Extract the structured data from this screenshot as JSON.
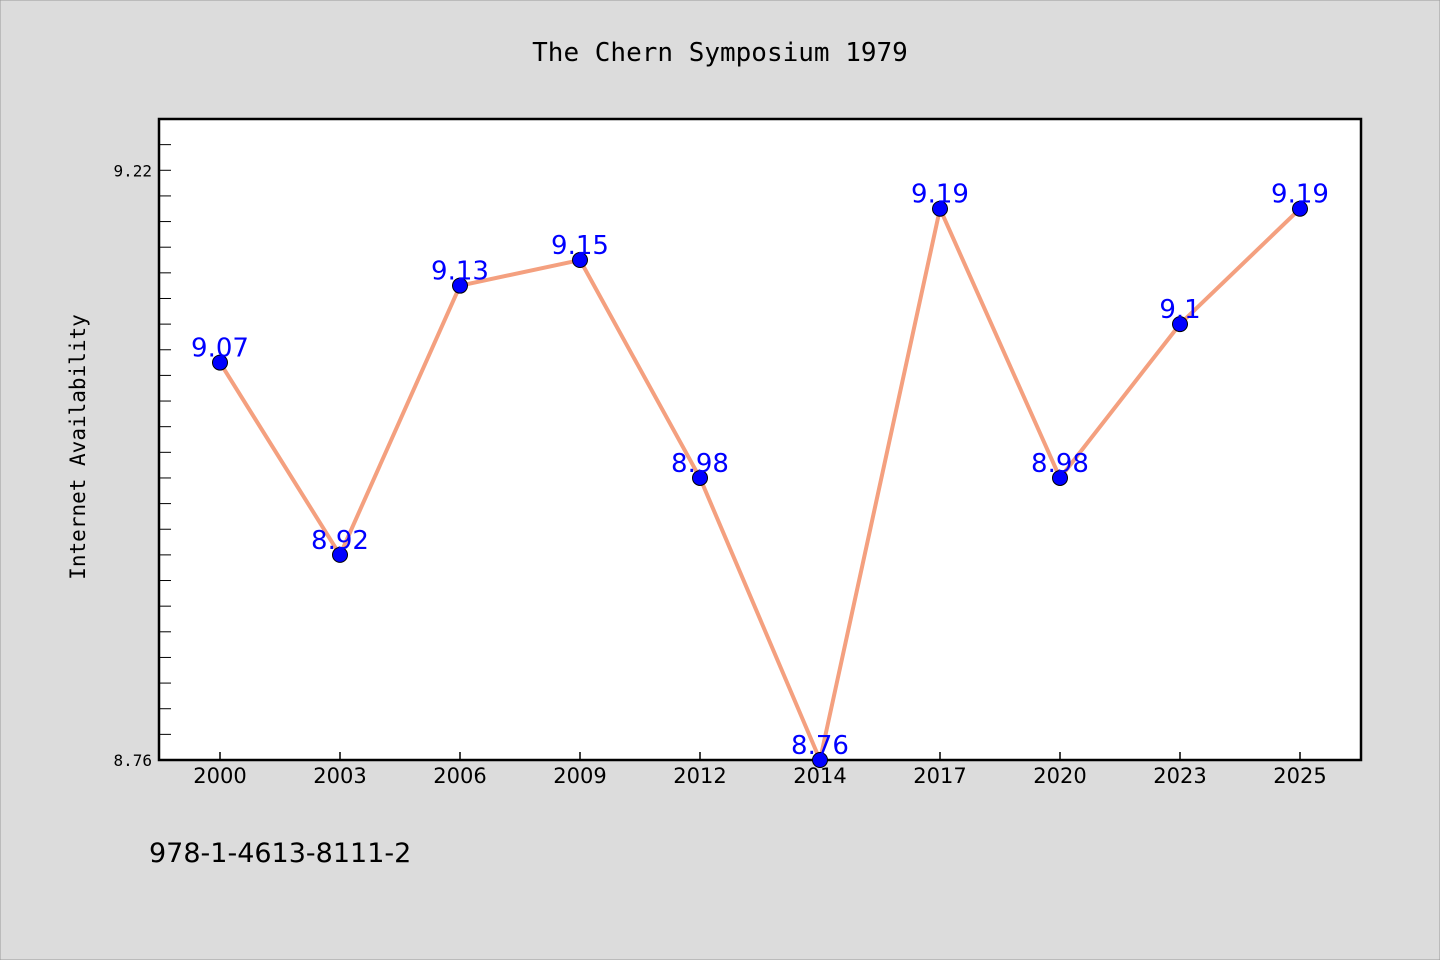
{
  "chart_data": {
    "type": "line",
    "title": "The Chern Symposium 1979",
    "xlabel": "",
    "ylabel": "Internet Availability",
    "categories": [
      "2000",
      "2003",
      "2006",
      "2009",
      "2012",
      "2014",
      "2017",
      "2020",
      "2023",
      "2025"
    ],
    "series": [
      {
        "values": [
          9.07,
          8.92,
          9.13,
          9.15,
          8.98,
          8.76,
          9.19,
          8.98,
          9.1,
          9.19
        ],
        "labels": [
          "9.07",
          "8.92",
          "9.13",
          "9.15",
          "8.98",
          "8.76",
          "9.19",
          "8.98",
          "9.1",
          "9.19"
        ]
      }
    ],
    "ylim": [
      8.76,
      9.26
    ],
    "yticks": [
      "8.76",
      "9.22"
    ],
    "grid": false,
    "legend": "none",
    "colors": {
      "line": "#f4a07f",
      "marker": "#0000ff",
      "label": "#0000ff",
      "background": "#dcdcdc",
      "plot_background": "#ffffff"
    }
  },
  "footer": {
    "isbn": "978-1-4613-8111-2"
  }
}
